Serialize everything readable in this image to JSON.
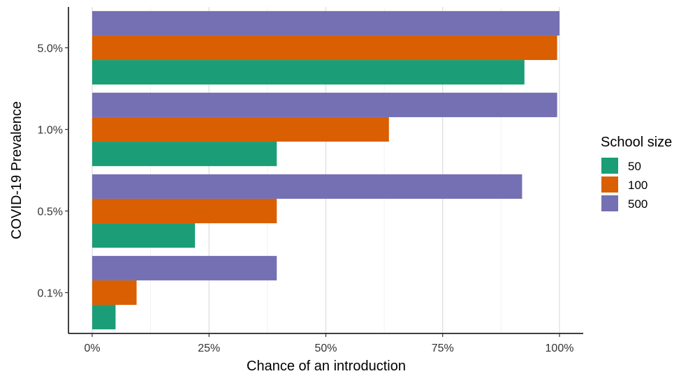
{
  "chart_data": {
    "type": "bar",
    "orientation": "horizontal",
    "categories": [
      "0.1%",
      "0.5%",
      "1.0%",
      "5.0%"
    ],
    "series": [
      {
        "name": "50",
        "color": "#1b9e77",
        "values": [
          5,
          22,
          39.5,
          92.5
        ]
      },
      {
        "name": "100",
        "color": "#d95f02",
        "values": [
          9.5,
          39.5,
          63.5,
          99.5
        ]
      },
      {
        "name": "500",
        "color": "#7570b3",
        "values": [
          39.5,
          92,
          99.5,
          100
        ]
      }
    ],
    "xlabel": "Chance of an introduction",
    "ylabel": "COVID-19 Prevalence",
    "x_ticks": [
      "0%",
      "25%",
      "50%",
      "75%",
      "100%"
    ],
    "x_tick_values": [
      0,
      25,
      50,
      75,
      100
    ],
    "xlim": [
      0,
      100
    ],
    "grid": "vertical",
    "legend": {
      "title": "School size",
      "position": "right"
    }
  }
}
